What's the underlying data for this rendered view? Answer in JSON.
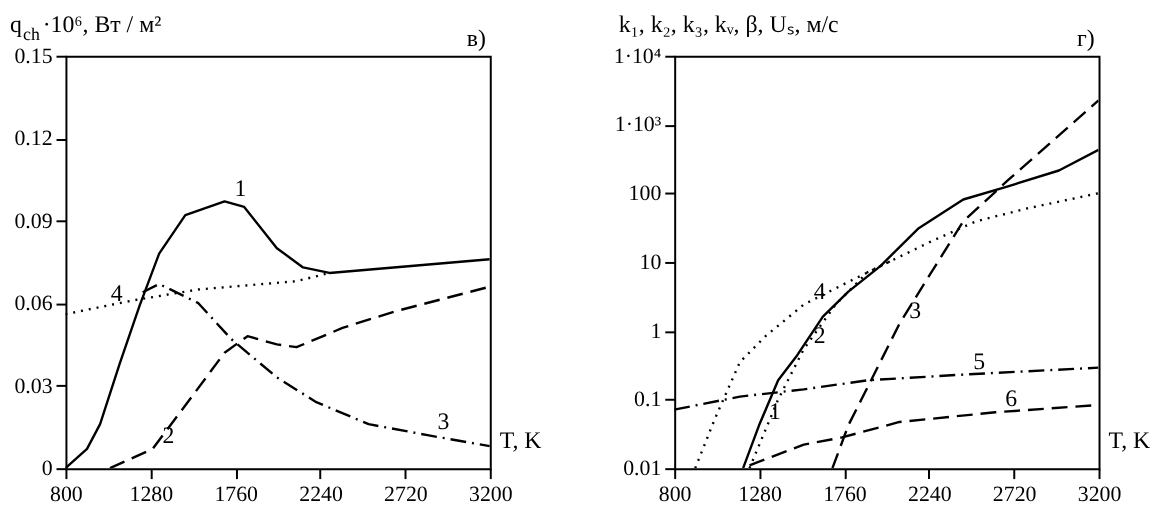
{
  "chart_data": [
    {
      "type": "line",
      "ylabel": "q$_{ch}$·10⁶, Вт / м²",
      "xlabel": "T, K",
      "xlim": [
        800,
        3200
      ],
      "xticks": [
        800,
        1280,
        1760,
        2240,
        2720,
        3200
      ],
      "ylim": [
        0,
        0.15
      ],
      "yticks": [
        0,
        0.03,
        0.06,
        0.09,
        0.12,
        0.15
      ],
      "grid": false,
      "legend": false,
      "marker": "none",
      "annotations": [
        "в)",
        {
          "text": "1",
          "x": 1700,
          "y": 0.097
        },
        {
          "text": "2",
          "x": 1293,
          "y": 0.007
        },
        {
          "text": "3",
          "x": 2848,
          "y": 0.012
        },
        {
          "text": "4",
          "x": 1000,
          "y": 0.0586
        }
      ],
      "series": [
        {
          "color": "#000000",
          "line_style": "solid",
          "x": [
            800,
            922,
            996,
            1107,
            1219,
            1330,
            1478,
            1700,
            1811,
            1996,
            2144,
            2293,
            3200
          ],
          "values": [
            0.0,
            0.007,
            0.016,
            0.038,
            0.059,
            0.078,
            0.092,
            0.097,
            0.095,
            0.08,
            0.073,
            0.071,
            0.076
          ]
        },
        {
          "color": "#000000",
          "line_style": "dashed",
          "x": [
            1052,
            1293,
            1515,
            1700,
            1830,
            1996,
            2107,
            2367,
            2663,
            3200
          ],
          "values": [
            0.0,
            0.007,
            0.026,
            0.042,
            0.048,
            0.045,
            0.044,
            0.051,
            0.057,
            0.066
          ]
        },
        {
          "color": "#000000",
          "line_style": "dashdot",
          "x": [
            1237,
            1330,
            1552,
            1737,
            1996,
            2219,
            2515,
            2848,
            3200
          ],
          "values": [
            0.064,
            0.067,
            0.06,
            0.047,
            0.033,
            0.024,
            0.016,
            0.012,
            0.008
          ]
        },
        {
          "color": "#000000",
          "line_style": "dotted",
          "x": [
            800,
            1181,
            1552,
            2107,
            2293
          ],
          "values": [
            0.056,
            0.061,
            0.065,
            0.068,
            0.071
          ]
        }
      ]
    },
    {
      "type": "line",
      "ylabel": "k₁, k₂, k₃, kᵥ, β, Uₛ, м/с",
      "xlabel": "T, K",
      "log": "y",
      "xlim": [
        800,
        3200
      ],
      "xticks": [
        800,
        1280,
        1760,
        2240,
        2720,
        3200
      ],
      "ylim": [
        0.01,
        10000
      ],
      "yticks": [
        0.01,
        0.1,
        1,
        10,
        100,
        {
          "value": 1000,
          "label": "1·10³"
        },
        {
          "value": 10000,
          "label": "1·10⁴"
        }
      ],
      "grid": false,
      "legend": false,
      "marker": "none",
      "annotations": [
        "г)",
        {
          "text": "1",
          "x": 1280,
          "y": 0.042
        },
        {
          "text": "2",
          "x": 1533,
          "y": 0.54
        },
        {
          "text": "3",
          "x": 2074,
          "y": 1.26
        },
        {
          "text": "4",
          "x": 1533,
          "y": 2.4
        },
        {
          "text": "5",
          "x": 2435,
          "y": 0.23
        },
        {
          "text": "6",
          "x": 2616,
          "y": 0.065
        }
      ],
      "series": [
        {
          "color": "#000000",
          "line_style": "solid",
          "x": [
            1190,
            1280,
            1388,
            1496,
            1641,
            1785,
            1966,
            2183,
            2435,
            2688,
            2976,
            3200
          ],
          "values": [
            0.01,
            0.042,
            0.19,
            0.44,
            1.6,
            3.7,
            8.7,
            31,
            81,
            126,
            214,
            427
          ]
        },
        {
          "color": "#000000",
          "line_style": "dotted",
          "x": [
            1226,
            1388,
            1533,
            1713,
            1894,
            2038
          ],
          "values": [
            0.01,
            0.1,
            0.54,
            2.4,
            7.1,
            10.7
          ]
        },
        {
          "color": "#000000",
          "line_style": "dashed",
          "x": [
            1695,
            1785,
            1930,
            2074,
            2255,
            2435,
            2688,
            2976,
            3200
          ],
          "values": [
            0.01,
            0.042,
            0.23,
            1.26,
            7.1,
            39,
            155,
            692,
            2240
          ]
        },
        {
          "color": "#000000",
          "line_style": "dotted",
          "x": [
            919,
            1027,
            1172,
            1316,
            1533,
            1749,
            1966,
            2255,
            2507,
            2796,
            3200
          ],
          "values": [
            0.01,
            0.05,
            0.35,
            0.83,
            2.4,
            4.6,
            8.7,
            20,
            39,
            60,
            100
          ]
        },
        {
          "color": "#000000",
          "line_style": "dashdot",
          "x": [
            800,
            1172,
            1533,
            1894,
            2435,
            3200
          ],
          "values": [
            0.071,
            0.11,
            0.14,
            0.19,
            0.23,
            0.29
          ]
        },
        {
          "color": "#000000",
          "line_style": "dashed",
          "x": [
            1226,
            1533,
            1749,
            2074,
            2616,
            3200
          ],
          "values": [
            0.011,
            0.022,
            0.028,
            0.047,
            0.065,
            0.083
          ]
        }
      ]
    }
  ]
}
